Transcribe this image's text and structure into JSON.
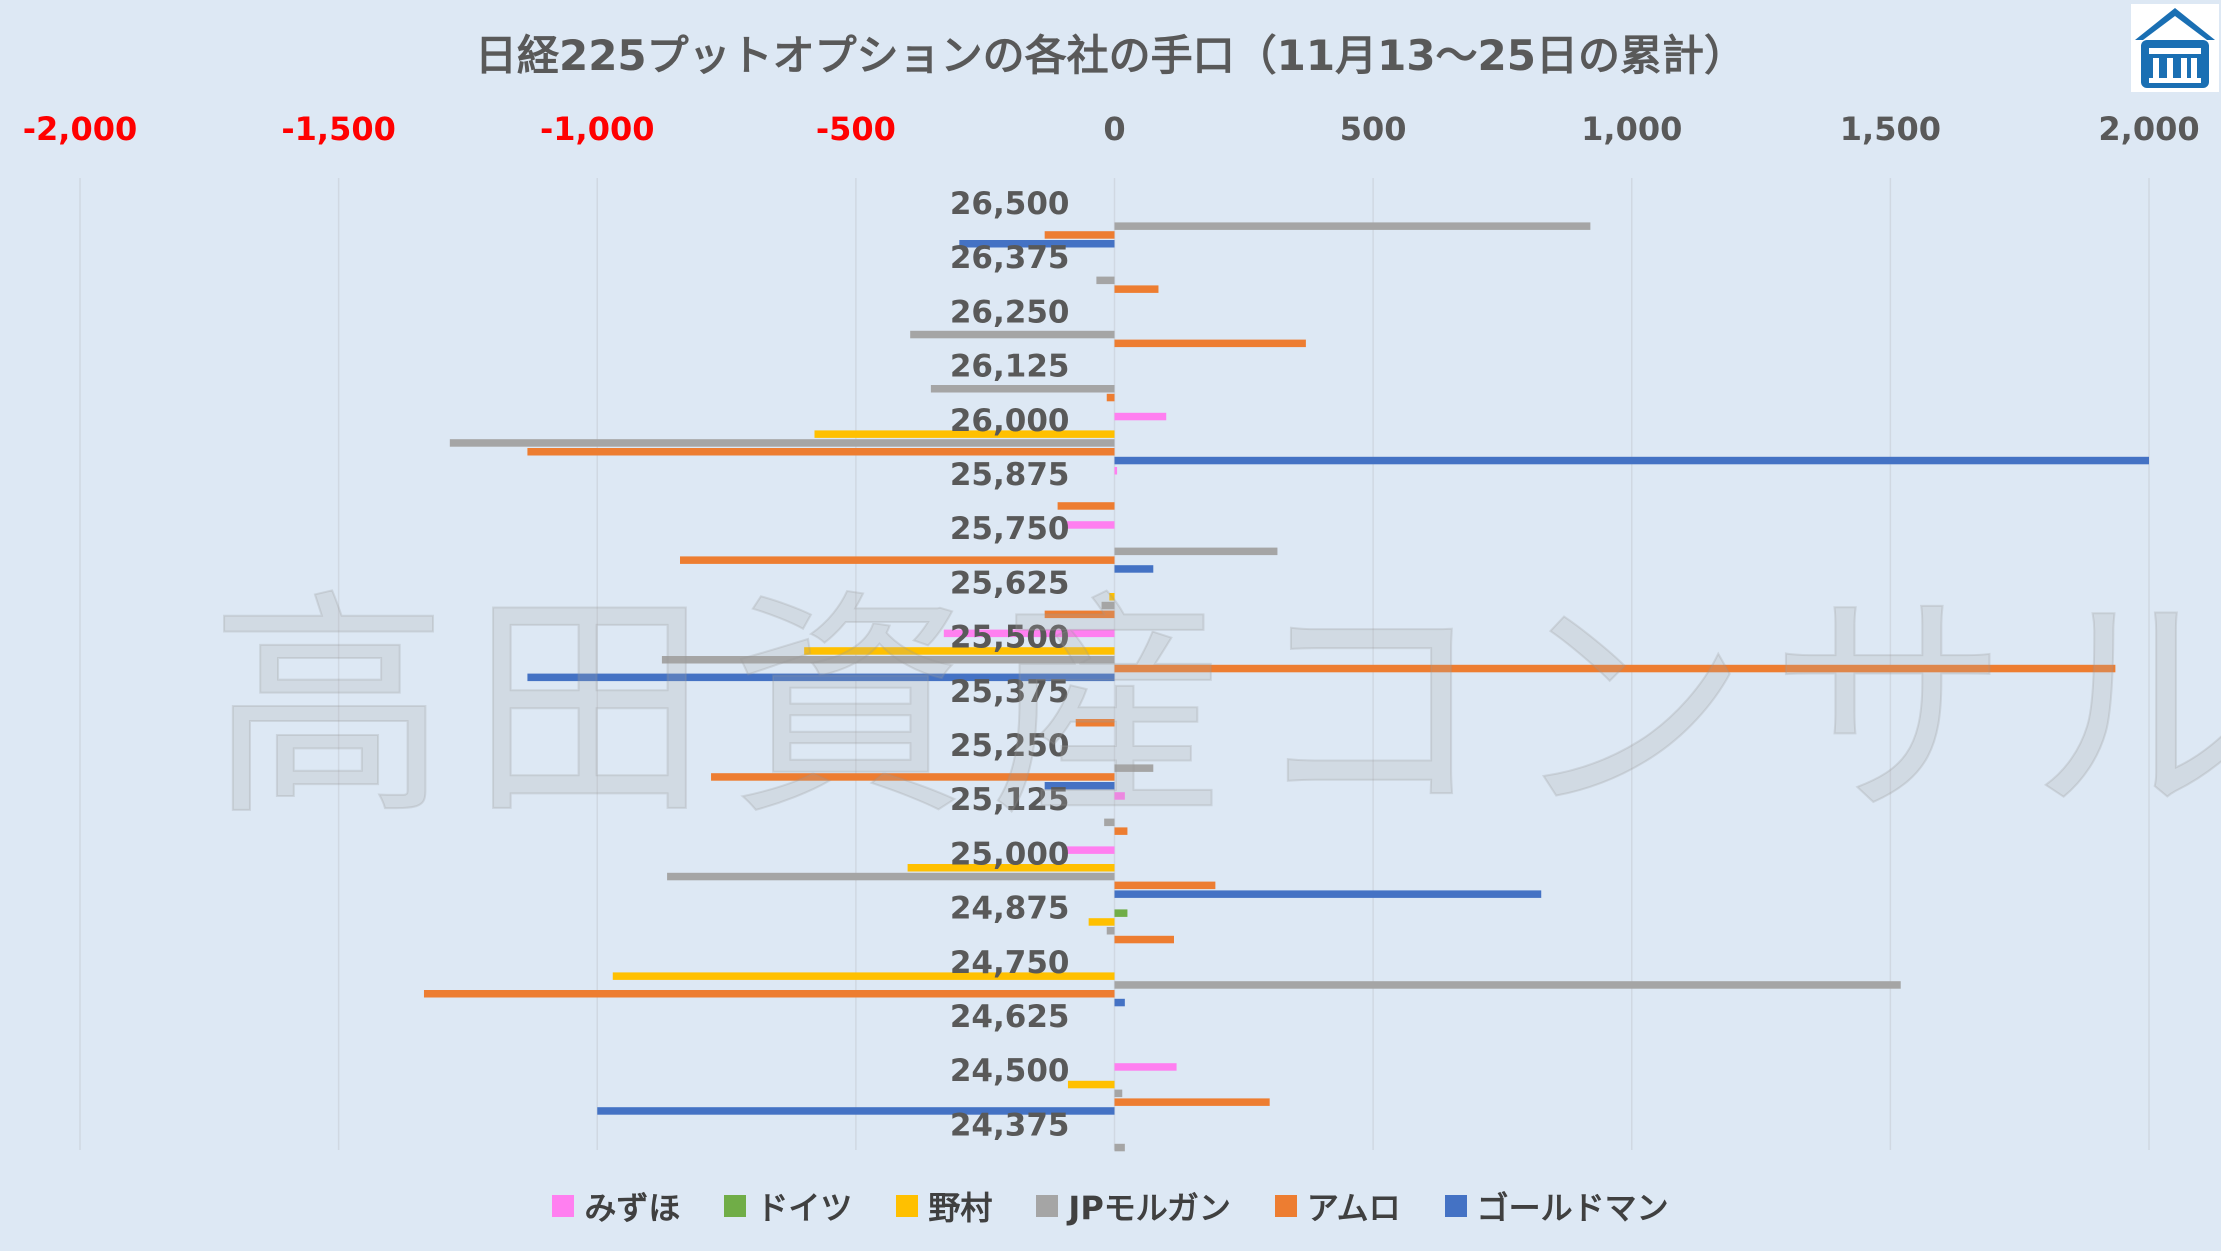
{
  "chart_data": {
    "type": "bar",
    "orientation": "horizontal",
    "title": "日経225プットオプションの各社の手口（11月13〜25日の累計）",
    "x_ticks": [
      "-2,000",
      "-1,500",
      "-1,000",
      "-500",
      "0",
      "500",
      "1,000",
      "1,500",
      "2,000"
    ],
    "x_tick_values": [
      -2000,
      -1500,
      -1000,
      -500,
      0,
      500,
      1000,
      1500,
      2000
    ],
    "xlim": [
      -2000,
      2000
    ],
    "negative_tick_color": "#ff0000",
    "positive_tick_color": "#595959",
    "grid": true,
    "legend_position": "bottom",
    "categories": [
      "26,500",
      "26,375",
      "26,250",
      "26,125",
      "26,000",
      "25,875",
      "25,750",
      "25,625",
      "25,500",
      "25,375",
      "25,250",
      "25,125",
      "25,000",
      "24,875",
      "24,750",
      "24,625",
      "24,500",
      "24,375"
    ],
    "series": [
      {
        "name": "みずほ",
        "color": "#ff7ff0",
        "values": [
          0,
          0,
          0,
          0,
          100,
          5,
          -100,
          0,
          -330,
          0,
          0,
          20,
          -100,
          0,
          0,
          0,
          120,
          0
        ]
      },
      {
        "name": "ドイツ",
        "color": "#70ad47",
        "values": [
          0,
          0,
          0,
          0,
          0,
          0,
          0,
          0,
          0,
          0,
          0,
          0,
          0,
          25,
          0,
          0,
          0,
          0
        ]
      },
      {
        "name": "野村",
        "color": "#ffc000",
        "values": [
          0,
          0,
          0,
          0,
          -580,
          0,
          0,
          -10,
          -600,
          0,
          0,
          0,
          -400,
          -50,
          -970,
          0,
          -90,
          0
        ]
      },
      {
        "name": "JPモルガン",
        "color": "#a5a5a5",
        "values": [
          920,
          -35,
          -395,
          -355,
          -1285,
          0,
          315,
          -25,
          -875,
          0,
          75,
          -20,
          -865,
          -15,
          1520,
          0,
          15,
          20
        ]
      },
      {
        "name": "アムロ",
        "color": "#ed7d31",
        "values": [
          -135,
          85,
          370,
          -15,
          -1135,
          -110,
          -840,
          -135,
          1935,
          -75,
          -780,
          25,
          195,
          115,
          -1335,
          0,
          300,
          0
        ]
      },
      {
        "name": "ゴールドマン",
        "color": "#4472c4",
        "values": [
          -300,
          0,
          0,
          0,
          2000,
          0,
          75,
          0,
          -1135,
          0,
          -135,
          0,
          825,
          0,
          20,
          0,
          -1000,
          0
        ]
      }
    ]
  },
  "watermark": "高田資産コンサル",
  "logo": {
    "name": "takada-logo",
    "bg": "#ffffff",
    "fg": "#1a6fb3"
  }
}
